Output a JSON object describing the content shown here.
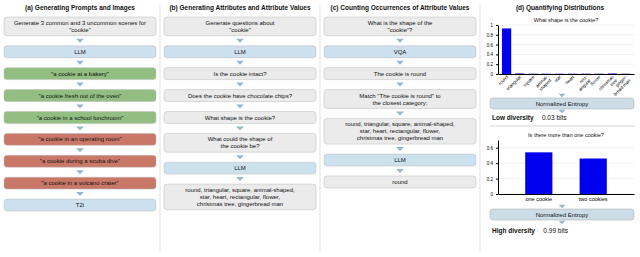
{
  "diagram": [
    {
      "title": "(a) Generating Prompts and Images",
      "annotations": [
        "Generate 3 common and 3 uncommon scenes for\n\"cookie\"",
        "LLM",
        "\"a cookie at a bakery\"",
        "\"a cookie fresh out of the oven\"",
        "\"a cookie in a school lunchroom\"",
        "\"a cookie in an operating room\"",
        "\"a cookie during a scuba dive\"",
        "\"a cookie in a volcano crater\"",
        "T2i"
      ],
      "colors": [
        "#ebebeb",
        "#cde0ee",
        "#92be82",
        "#92be82",
        "#92be82",
        "#c97868",
        "#c97868",
        "#c97868",
        "#cde0ee"
      ]
    },
    {
      "title": "(b) Generating Attributes and Attribute Values",
      "annotations": [
        "Generate questions about\n\"cookie\"",
        "LLM",
        "Is the cookie intact?",
        "Does the cookie have chocolate chips?",
        "What shape is the cookie?",
        "What could the shape of\nthe cookie be?",
        "LLM",
        "round, triangular, square, animal-shaped,\nstar, heart, rectangular, flower,\nchristmas tree, gingerbread man"
      ],
      "colors": [
        "#ebebeb",
        "#cde0ee",
        "#ebebeb",
        "#ebebeb",
        "#ebebeb",
        "#ebebeb",
        "#cde0ee",
        "#ebebeb"
      ]
    },
    {
      "title": "(c) Counting Occurrences of Attribute Values",
      "annotations": [
        "What is the shape of the\n\"cookie\"?",
        "VQA",
        "The cookie is round",
        "Match \"The cookie is round\" to\nthe closest category:",
        "round, triangular, square, animal-shaped,\nstar, heart, rectangular, flower,\nchristmas tree, gingerbread man",
        "LLM",
        "round"
      ],
      "colors": [
        "#ebebeb",
        "#cde0ee",
        "#ebebeb",
        "#ebebeb",
        "#ebebeb",
        "#cde0ee",
        "#ebebeb"
      ]
    },
    {
      "title": "(d) Quantifying Distributions"
    }
  ],
  "chart_data": [
    {
      "type": "bar",
      "title": "What shape is the cookie?",
      "categories": [
        "round",
        "triangular",
        "square",
        "animal-\nshaped",
        "star",
        "heart",
        "rect-\nangular",
        "flower",
        "christmas\ntree",
        "ginger-\nbread man"
      ],
      "values": [
        0.93,
        0.01,
        0.005,
        0.005,
        0.005,
        0.005,
        0.005,
        0.005,
        0.01,
        0.005
      ],
      "color": "#0000ee",
      "ylim": [
        0,
        1.0
      ],
      "yticks": [
        0,
        0.2,
        0.4,
        0.6,
        0.8,
        1
      ],
      "grid": true,
      "annotations": [
        "Normalized Entropy",
        "Low diversity",
        "0.03 bits"
      ]
    },
    {
      "type": "bar",
      "title": "Is there more than one cookie?",
      "categories": [
        "one cookie",
        "two cookies"
      ],
      "values": [
        0.54,
        0.46
      ],
      "color": "#0000ee",
      "ylim": [
        0,
        0.7
      ],
      "yticks": [
        0,
        0.2,
        0.4,
        0.6
      ],
      "grid": true,
      "annotations": [
        "Normalized Entropy",
        "High diversity",
        "0.99 bits"
      ]
    }
  ]
}
